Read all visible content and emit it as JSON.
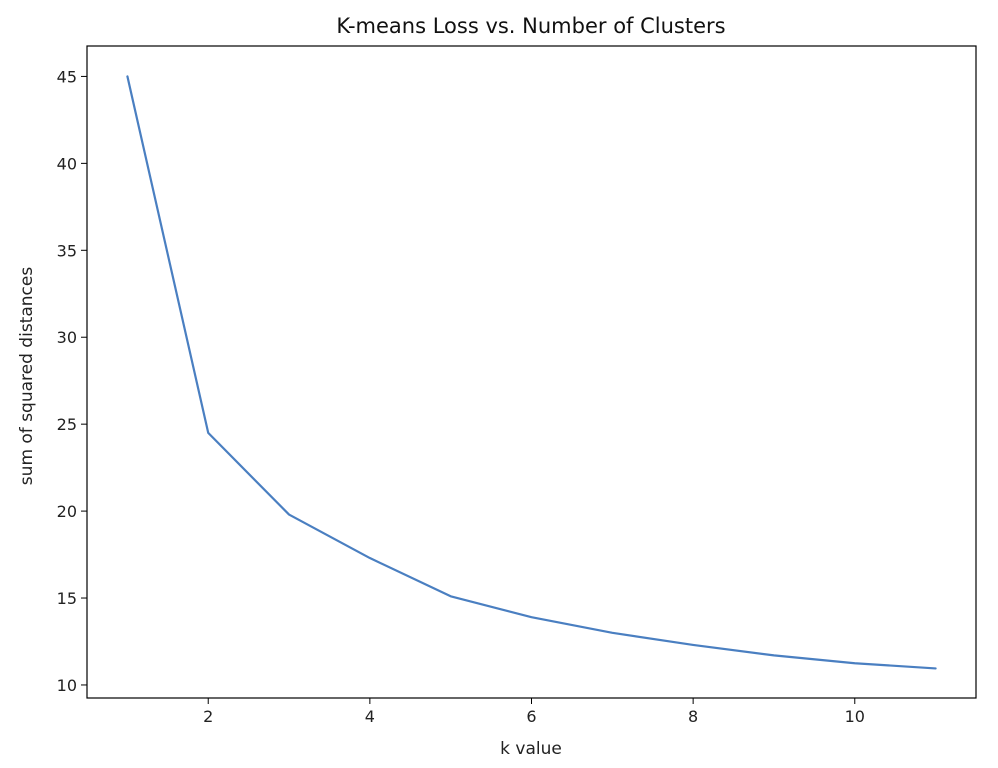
{
  "chart_data": {
    "type": "line",
    "title": "K-means Loss vs. Number of Clusters",
    "xlabel": "k value",
    "ylabel": "sum of squared distances",
    "x": [
      1,
      2,
      3,
      4,
      5,
      6,
      7,
      8,
      9,
      10,
      11
    ],
    "series": [
      {
        "values": [
          45.0,
          24.5,
          19.8,
          17.3,
          15.1,
          13.9,
          13.0,
          12.3,
          11.7,
          11.25,
          10.95
        ],
        "color": "#4a7fc1"
      }
    ],
    "xlim": [
      0.5,
      11.5
    ],
    "ylim": [
      9.25,
      46.75
    ],
    "xticks": [
      2,
      4,
      6,
      8,
      10
    ],
    "yticks": [
      10,
      15,
      20,
      25,
      30,
      35,
      40,
      45
    ],
    "grid": false,
    "legend": "none"
  }
}
